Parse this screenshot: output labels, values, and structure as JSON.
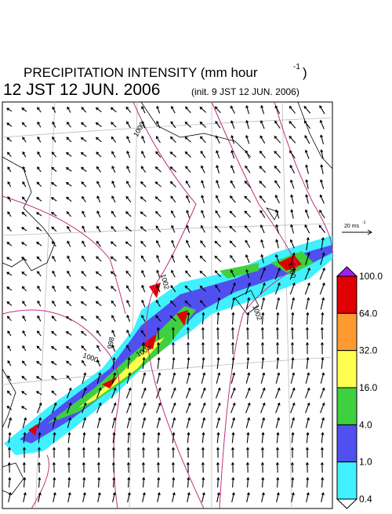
{
  "header": {
    "title": "PRECIPITATION INTENSITY (mm hour",
    "title_unit_exp": "-1",
    "title_close": ")",
    "time": "12 JST 12 JUN. 2006",
    "init": "(init. 9 JST 12 JUN. 2006)"
  },
  "wind_scale": {
    "label": "20 ms",
    "exp": "-1"
  },
  "contour_labels": [
    "1002",
    "1000",
    "998",
    "1004",
    "1000",
    "1002",
    "1000"
  ],
  "colorbar": {
    "labels": [
      "100.0",
      "64.0",
      "32.0",
      "16.0",
      "4.0",
      "1.0",
      "0.4"
    ],
    "colors": [
      "#e00000",
      "#ff9a30",
      "#ffff50",
      "#3fd03f",
      "#5050f0",
      "#40f0ff"
    ],
    "over_color": "#a020f0",
    "under_color": "#ffffff"
  }
}
